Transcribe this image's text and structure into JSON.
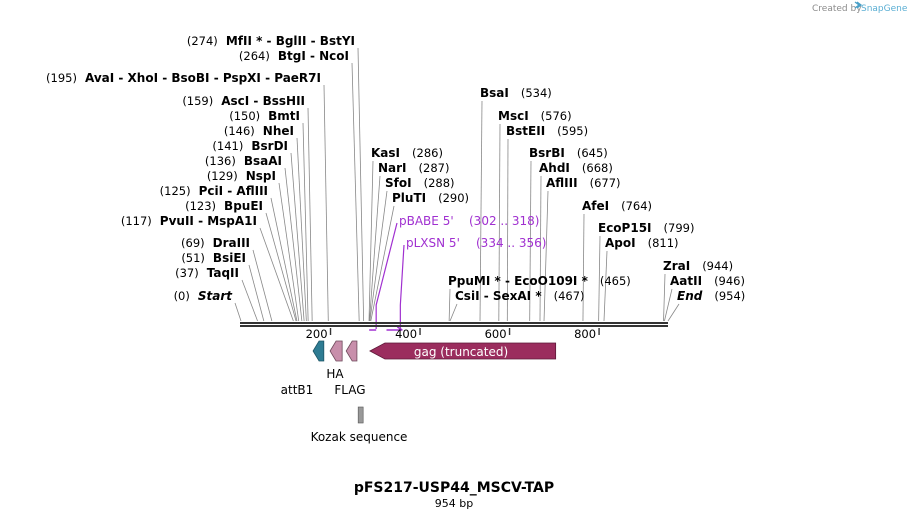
{
  "credit": {
    "prefix": "Created by",
    "brand": "SnapGene"
  },
  "plasmid": {
    "name": "pFS217-USP44_MSCV-TAP",
    "length_label": "954 bp",
    "length": 954
  },
  "colors": {
    "backbone": "#333333",
    "primer": "#a030d0",
    "gag": "#9b2d5e",
    "attB1": "#2e7c93",
    "tag": "#c88fab",
    "kozak": "#999999"
  },
  "ticks": [
    {
      "pos": 200,
      "label": "200"
    },
    {
      "pos": 400,
      "label": "400"
    },
    {
      "pos": 600,
      "label": "600"
    },
    {
      "pos": 800,
      "label": "800"
    }
  ],
  "enzymes_left": [
    {
      "prefix": "(274)",
      "names": "MfII * - BglII - BstYI",
      "pos": 274
    },
    {
      "prefix": "(264)",
      "names": "BtgI - NcoI",
      "pos": 264
    },
    {
      "prefix": "(195)",
      "names": "AvaI - XhoI - BsoBI - PspXI - PaeR7I",
      "pos": 195
    },
    {
      "prefix": "(159)",
      "names": "AscI - BssHII",
      "pos": 159
    },
    {
      "prefix": "(150)",
      "names": "BmtI",
      "pos": 150
    },
    {
      "prefix": "(146)",
      "names": "NheI",
      "pos": 146
    },
    {
      "prefix": "(141)",
      "names": "BsrDI",
      "pos": 141
    },
    {
      "prefix": "(136)",
      "names": "BsaAI",
      "pos": 136
    },
    {
      "prefix": "(129)",
      "names": "NspI",
      "pos": 129
    },
    {
      "prefix": "(125)",
      "names": "PciI - AflIII",
      "pos": 125
    },
    {
      "prefix": "(123)",
      "names": "BpuEI",
      "pos": 123
    },
    {
      "prefix": "(117)",
      "names": "PvuII - MspA1I",
      "pos": 117
    },
    {
      "prefix": "(69)",
      "names": "DraIII",
      "pos": 69
    },
    {
      "prefix": "(51)",
      "names": "BsiEI",
      "pos": 51
    },
    {
      "prefix": "(37)",
      "names": "TaqII",
      "pos": 37
    },
    {
      "prefix": "(0)",
      "names": "Start",
      "pos": 0
    }
  ],
  "enzymes_right": [
    {
      "names": "BsaI",
      "suffix": "(534)",
      "pos": 534
    },
    {
      "names": "MscI",
      "suffix": "(576)",
      "pos": 576
    },
    {
      "names": "BstEII",
      "suffix": "(595)",
      "pos": 595
    },
    {
      "names": "KasI",
      "suffix": "(286)",
      "pos": 286
    },
    {
      "names": "NarI",
      "suffix": "(287)",
      "pos": 287
    },
    {
      "names": "SfoI",
      "suffix": "(288)",
      "pos": 288
    },
    {
      "names": "PluTI",
      "suffix": "(290)",
      "pos": 290
    },
    {
      "names": "BsrBI",
      "suffix": "(645)",
      "pos": 645
    },
    {
      "names": "AhdI",
      "suffix": "(668)",
      "pos": 668
    },
    {
      "names": "AflIII",
      "suffix": "(677)",
      "pos": 677
    },
    {
      "names": "AfeI",
      "suffix": "(764)",
      "pos": 764
    },
    {
      "names": "EcoP15I",
      "suffix": "(799)",
      "pos": 799
    },
    {
      "names": "ApoI",
      "suffix": "(811)",
      "pos": 811
    },
    {
      "names": "PpuMI * - EcoO109I *",
      "suffix": "(465)",
      "pos": 465
    },
    {
      "names": "CsiI - SexAI *",
      "suffix": "(467)",
      "pos": 467
    },
    {
      "names": "ZraI",
      "suffix": "(944)",
      "pos": 944
    },
    {
      "names": "AatII",
      "suffix": "(946)",
      "pos": 946
    },
    {
      "names": "End",
      "suffix": "(954)",
      "pos": 954
    }
  ],
  "primers": [
    {
      "name": "pBABE 5'",
      "range": "(302 .. 318)",
      "start": 302,
      "end": 318
    },
    {
      "name": "pLXSN 5'",
      "range": "(334 .. 356)",
      "start": 334,
      "end": 356
    }
  ],
  "features": [
    {
      "name": "gag (truncated)",
      "start": 288,
      "end": 703
    },
    {
      "name": "attB1",
      "start": 161,
      "end": 185
    },
    {
      "name": "HA",
      "start": 199,
      "end": 226
    },
    {
      "name": "FLAG",
      "start": 235,
      "end": 259
    },
    {
      "name": "Kozak sequence",
      "start": 264,
      "end": 273
    }
  ]
}
